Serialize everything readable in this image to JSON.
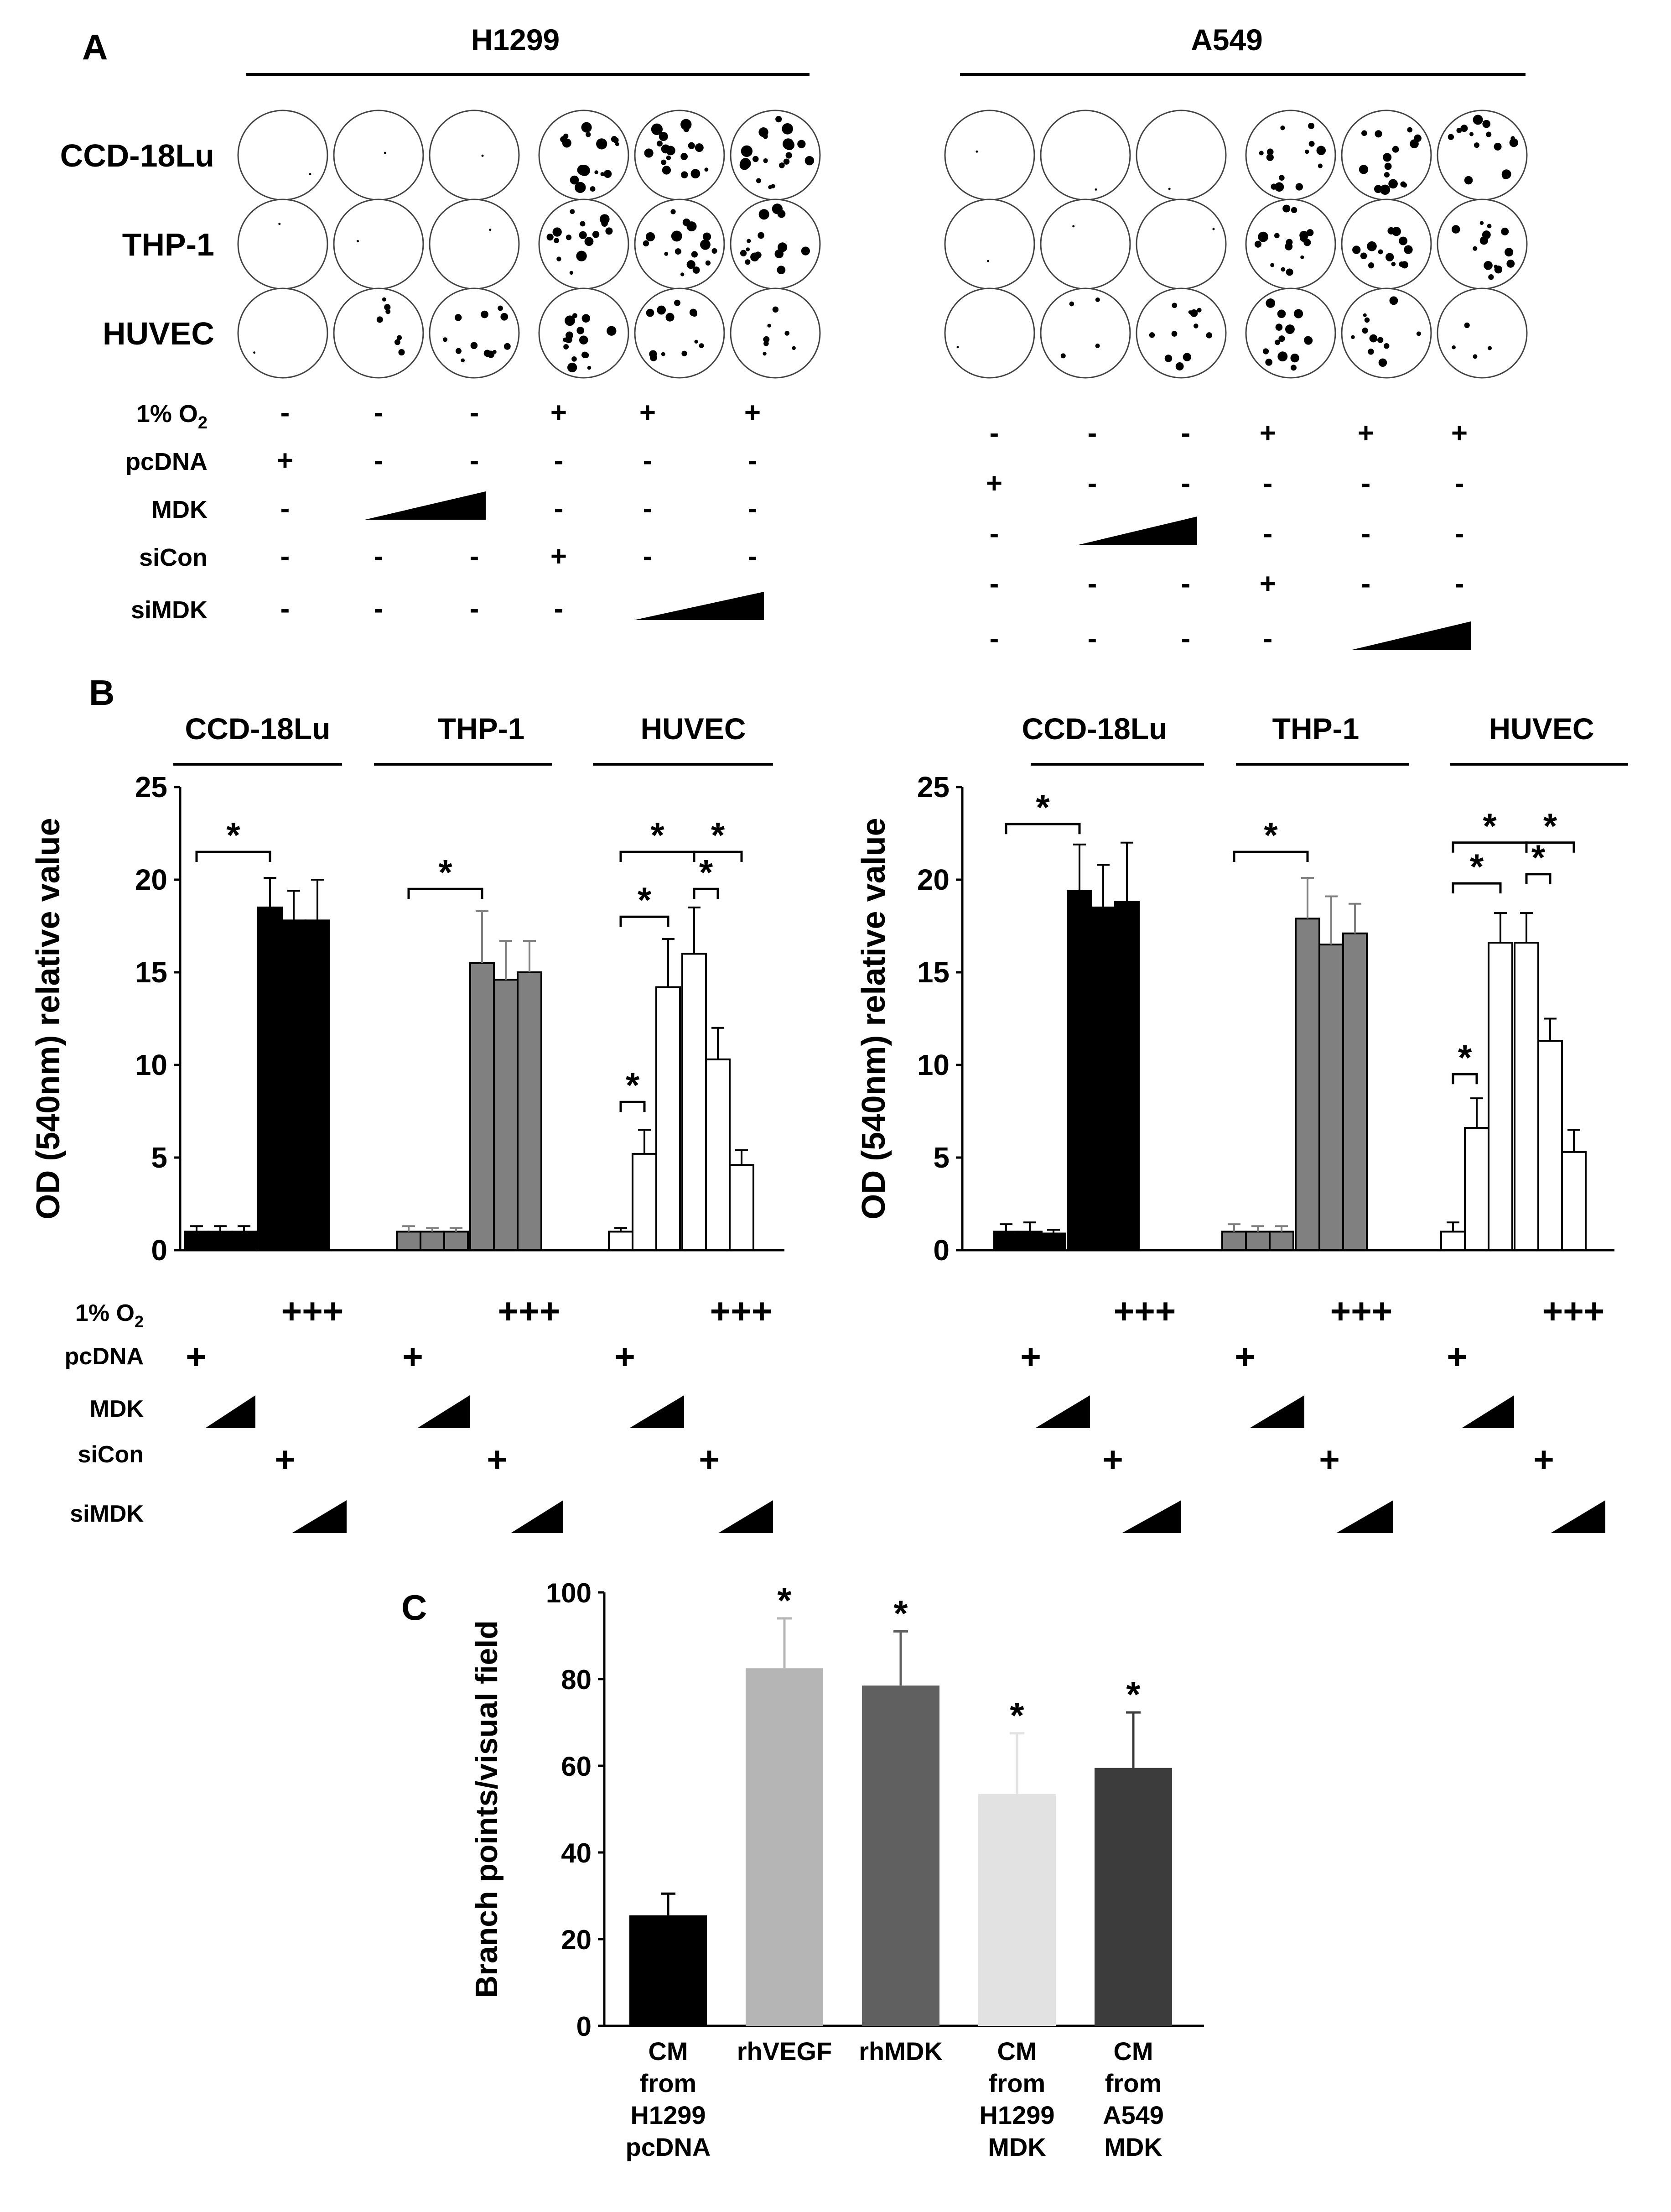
{
  "panel_labels": [
    "A",
    "B",
    "C"
  ],
  "panel_a": {
    "cell_lines": [
      "H1299",
      "A549"
    ],
    "row_labels": [
      "CCD-18Lu",
      "THP-1",
      "HUVEC"
    ],
    "condition_labels": [
      "1% O",
      "pcDNA",
      "MDK",
      "siCon",
      "siMDK"
    ],
    "oxygen_subscript": "2",
    "conditions": {
      "oxygen": [
        "-",
        "-",
        "-",
        "+",
        "+",
        "+"
      ],
      "pcdna": [
        "+",
        "-",
        "-",
        "-",
        "-",
        "-"
      ],
      "mdk": [
        "-",
        "ramp",
        "ramp",
        "-",
        "-",
        "-"
      ],
      "sicon": [
        "-",
        "-",
        "-",
        "+",
        "-",
        "-"
      ],
      "simdk": [
        "-",
        "-",
        "-",
        "-",
        "ramp",
        "ramp"
      ]
    },
    "colony_density": {
      "H1299": [
        [
          0.02,
          0.02,
          0.02,
          0.75,
          0.8,
          0.85
        ],
        [
          0.02,
          0.02,
          0.02,
          0.7,
          0.75,
          0.7
        ],
        [
          0.02,
          0.3,
          0.55,
          0.7,
          0.55,
          0.3
        ]
      ],
      "A549": [
        [
          0.02,
          0.02,
          0.02,
          0.6,
          0.7,
          0.7
        ],
        [
          0.02,
          0.02,
          0.02,
          0.7,
          0.65,
          0.6
        ],
        [
          0.02,
          0.2,
          0.5,
          0.65,
          0.5,
          0.2
        ]
      ]
    }
  },
  "panel_b": {
    "condition_labels": [
      "1% O",
      "pcDNA",
      "MDK",
      "siCon",
      "siMDK"
    ],
    "oxygen_subscript": "2",
    "plus_sign": "+",
    "triple_plus": "+++"
  },
  "chart_data": [
    {
      "type": "bar",
      "panel": "B-left",
      "cell_line": "H1299",
      "ylabel": "OD (540nm) relative value",
      "ylim": [
        0,
        25
      ],
      "yticks": [
        "0",
        "5",
        "10",
        "15",
        "20",
        "25"
      ],
      "groups": [
        {
          "name": "CCD-18Lu",
          "color": "#000000",
          "values": [
            1.0,
            1.0,
            1.0,
            18.5,
            17.8,
            17.8
          ],
          "errors": [
            0.3,
            0.3,
            0.3,
            1.6,
            1.6,
            2.2
          ]
        },
        {
          "name": "THP-1",
          "color": "#808080",
          "values": [
            1.0,
            1.0,
            1.0,
            15.5,
            14.6,
            15.0
          ],
          "errors": [
            0.3,
            0.2,
            0.2,
            2.8,
            2.1,
            1.7
          ]
        },
        {
          "name": "HUVEC",
          "color": "#ffffff",
          "values": [
            1.0,
            5.2,
            14.2,
            16.0,
            10.3,
            4.6
          ],
          "errors": [
            0.2,
            1.3,
            2.6,
            2.5,
            1.7,
            0.8
          ]
        }
      ],
      "significance_marker": "*",
      "significance_brackets": [
        {
          "group": 0,
          "from": 0,
          "to": 3,
          "y": 21.5
        },
        {
          "group": 1,
          "from": 0,
          "to": 3,
          "y": 19.5
        },
        {
          "group": 2,
          "from": 0,
          "to": 1,
          "y": 8.0
        },
        {
          "group": 2,
          "from": 0,
          "to": 2,
          "y": 18.0
        },
        {
          "group": 2,
          "from": 0,
          "to": 3,
          "y": 21.5
        },
        {
          "group": 2,
          "from": 3,
          "to": 4,
          "y": 19.5
        },
        {
          "group": 2,
          "from": 3,
          "to": 5,
          "y": 21.5
        }
      ]
    },
    {
      "type": "bar",
      "panel": "B-right",
      "cell_line": "A549",
      "ylabel": "OD (540nm) relative value",
      "ylim": [
        0,
        25
      ],
      "yticks": [
        "0",
        "5",
        "10",
        "15",
        "20",
        "25"
      ],
      "groups": [
        {
          "name": "CCD-18Lu",
          "color": "#000000",
          "values": [
            1.0,
            1.0,
            0.9,
            19.4,
            18.5,
            18.8
          ],
          "errors": [
            0.4,
            0.5,
            0.2,
            2.5,
            2.3,
            3.2
          ]
        },
        {
          "name": "THP-1",
          "color": "#808080",
          "values": [
            1.0,
            1.0,
            1.0,
            17.9,
            16.5,
            17.1
          ],
          "errors": [
            0.4,
            0.3,
            0.3,
            2.2,
            2.6,
            1.6
          ]
        },
        {
          "name": "HUVEC",
          "color": "#ffffff",
          "values": [
            1.0,
            6.6,
            16.6,
            16.6,
            11.3,
            5.3
          ],
          "errors": [
            0.5,
            1.6,
            1.6,
            1.6,
            1.2,
            1.2
          ]
        }
      ],
      "significance_marker": "*",
      "significance_brackets": [
        {
          "group": 0,
          "from": 0,
          "to": 3,
          "y": 23.0
        },
        {
          "group": 1,
          "from": 0,
          "to": 3,
          "y": 21.5
        },
        {
          "group": 2,
          "from": 0,
          "to": 1,
          "y": 9.5
        },
        {
          "group": 2,
          "from": 0,
          "to": 2,
          "y": 19.8
        },
        {
          "group": 2,
          "from": 0,
          "to": 3,
          "y": 22.0
        },
        {
          "group": 2,
          "from": 3,
          "to": 4,
          "y": 20.3
        },
        {
          "group": 2,
          "from": 3,
          "to": 5,
          "y": 22.0
        }
      ]
    },
    {
      "type": "bar",
      "panel": "C",
      "ylabel": "Branch points/visual field",
      "ylim": [
        0,
        100
      ],
      "yticks": [
        "0",
        "20",
        "40",
        "60",
        "80",
        "100"
      ],
      "categories": [
        [
          "CM",
          "from",
          "H1299",
          "pcDNA"
        ],
        [
          "rhVEGF"
        ],
        [
          "rhMDK"
        ],
        [
          "CM",
          "from",
          "H1299",
          "MDK"
        ],
        [
          "CM",
          "from",
          "A549",
          "MDK"
        ]
      ],
      "values": [
        25.5,
        82.5,
        78.5,
        53.5,
        59.5
      ],
      "errors": [
        5.0,
        11.5,
        12.5,
        14.0,
        12.8
      ],
      "colors": [
        "#000000",
        "#b5b5b5",
        "#606060",
        "#e2e2e2",
        "#3c3c3c"
      ],
      "significance": [
        false,
        true,
        true,
        true,
        true
      ],
      "significance_marker": "*"
    }
  ]
}
